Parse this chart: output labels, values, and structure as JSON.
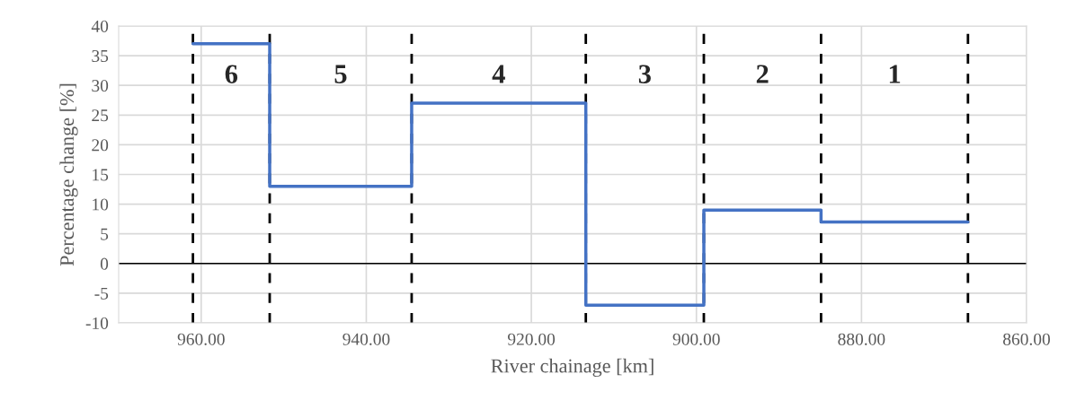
{
  "chart_data": {
    "type": "step",
    "xlabel": "River chainage [km]",
    "ylabel": "Percentage change [%]",
    "x": [
      961.0,
      951.7,
      934.5,
      913.4,
      899.1,
      884.9,
      867.1
    ],
    "series": [
      {
        "color": "#4472c4",
        "values": [
          37,
          13,
          27,
          -7,
          9,
          7,
          7
        ]
      }
    ],
    "xlim": [
      970,
      860
    ],
    "xticks": [
      {
        "value": 960,
        "label": "960.00"
      },
      {
        "value": 940,
        "label": "940.00"
      },
      {
        "value": 920,
        "label": "920.00"
      },
      {
        "value": 900,
        "label": "900.00"
      },
      {
        "value": 880,
        "label": "880.00"
      },
      {
        "value": 860,
        "label": "860.00"
      }
    ],
    "ylim": [
      -10,
      40
    ],
    "yticks": [
      -10,
      -5,
      0,
      5,
      10,
      15,
      20,
      25,
      30,
      35,
      40
    ],
    "grid": true,
    "ref_lines": [
      {
        "axis": "y",
        "value": 0,
        "color": "#000000",
        "line_style": "solid"
      },
      {
        "axis": "x",
        "value": 961.0,
        "color": "#000000",
        "line_style": "dashed"
      },
      {
        "axis": "x",
        "value": 951.7,
        "color": "#000000",
        "line_style": "dashed"
      },
      {
        "axis": "x",
        "value": 934.5,
        "color": "#000000",
        "line_style": "dashed"
      },
      {
        "axis": "x",
        "value": 913.4,
        "color": "#000000",
        "line_style": "dashed"
      },
      {
        "axis": "x",
        "value": 899.1,
        "color": "#000000",
        "line_style": "dashed"
      },
      {
        "axis": "x",
        "value": 884.9,
        "color": "#000000",
        "line_style": "dashed"
      },
      {
        "axis": "x",
        "value": 867.1,
        "color": "#000000",
        "line_style": "dashed"
      }
    ],
    "annotations": [
      "6",
      "5",
      "4",
      "3",
      "2",
      "1"
    ]
  }
}
